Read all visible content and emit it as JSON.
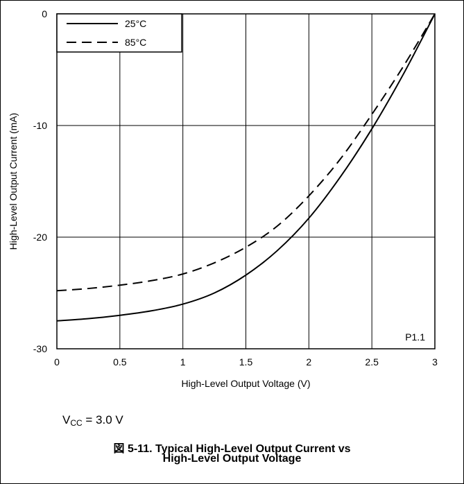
{
  "chart_data": {
    "type": "line",
    "xlabel": "High-Level Output Voltage (V)",
    "ylabel": "High-Level Output Current (mA)",
    "xlim": [
      0,
      3
    ],
    "ylim": [
      -30,
      0
    ],
    "x_ticks": [
      "0",
      "0.5",
      "1",
      "1.5",
      "2",
      "2.5",
      "3"
    ],
    "y_ticks": [
      "0",
      "-10",
      "-20",
      "-30"
    ],
    "grid": true,
    "legend_position": "top-left",
    "annotation": "P1.1",
    "series": [
      {
        "name": "25°C",
        "line_style": "solid",
        "x": [
          0,
          0.25,
          0.5,
          0.75,
          1.0,
          1.25,
          1.5,
          1.75,
          2.0,
          2.25,
          2.5,
          2.75,
          3.0
        ],
        "y": [
          -27.5,
          -27.3,
          -27.0,
          -26.6,
          -26.0,
          -25.0,
          -23.4,
          -21.2,
          -18.3,
          -14.6,
          -10.3,
          -5.4,
          0
        ]
      },
      {
        "name": "85°C",
        "line_style": "dashed",
        "x": [
          0,
          0.25,
          0.5,
          0.75,
          1.0,
          1.25,
          1.5,
          1.75,
          2.0,
          2.25,
          2.5,
          2.75,
          3.0
        ],
        "y": [
          -24.8,
          -24.6,
          -24.3,
          -23.9,
          -23.3,
          -22.3,
          -20.9,
          -19.0,
          -16.3,
          -13.0,
          -9.0,
          -4.7,
          0
        ]
      }
    ]
  },
  "footer": {
    "vcc_prefix": "V",
    "vcc_sub": "CC",
    "vcc_value": " = 3.0 V",
    "caption_line1": "図 5-11. Typical High-Level Output Current vs",
    "caption_line2": "High-Level Output Voltage"
  }
}
